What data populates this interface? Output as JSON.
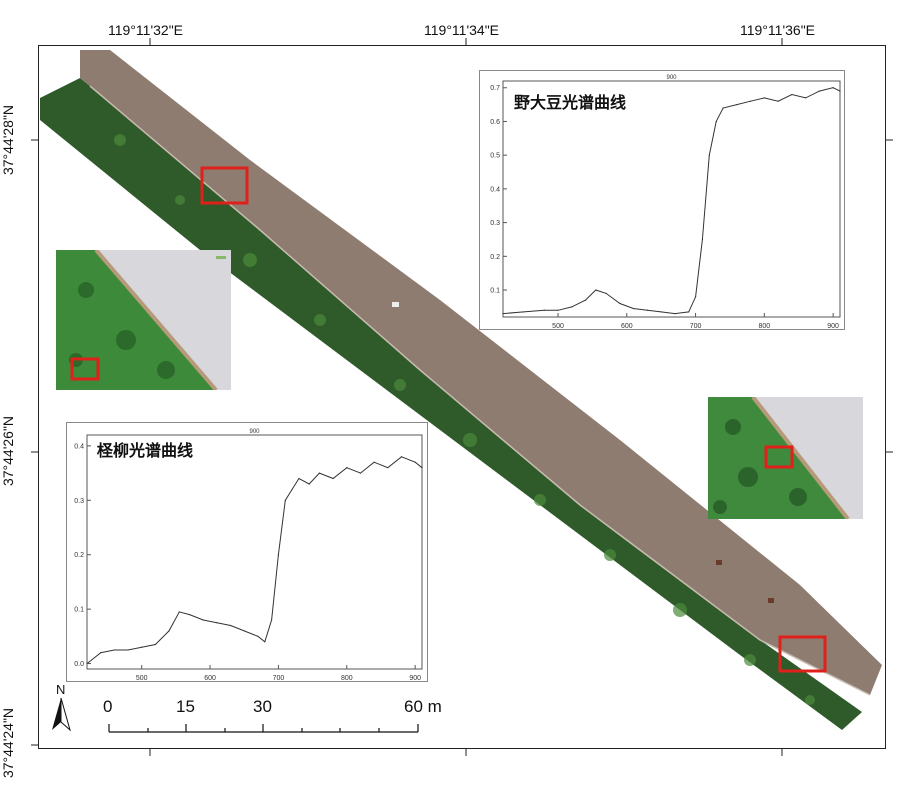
{
  "graticule": {
    "top_labels": [
      "119°11'32\"E",
      "119°11'34\"E",
      "119°11'36\"E"
    ],
    "left_labels": [
      "37°44'28\"N",
      "37°44'26\"N",
      "37°44'24\"N"
    ]
  },
  "north_arrow": {
    "label": "N"
  },
  "scale_bar": {
    "labels": [
      "0",
      "15",
      "30",
      "60 m"
    ]
  },
  "charts": {
    "soybean": {
      "title": "野大豆光谱曲线",
      "top_mark": "900",
      "x_ticks": [
        "500",
        "600",
        "700",
        "800",
        "900"
      ],
      "y_ticks": [
        "0.1",
        "0.2",
        "0.3",
        "0.4",
        "0.5",
        "0.6",
        "0.7"
      ]
    },
    "tamarisk": {
      "title": "柽柳光谱曲线",
      "top_mark": "900",
      "x_ticks": [
        "500",
        "600",
        "700",
        "800",
        "900"
      ],
      "y_ticks": [
        "0.0",
        "0.1",
        "0.2",
        "0.3",
        "0.4"
      ]
    }
  },
  "chart_data": [
    {
      "type": "line",
      "title": "野大豆光谱曲线",
      "x": [
        420,
        450,
        480,
        500,
        520,
        540,
        555,
        570,
        590,
        610,
        630,
        650,
        670,
        690,
        700,
        710,
        720,
        730,
        740,
        760,
        780,
        800,
        820,
        840,
        860,
        880,
        900,
        910
      ],
      "values": [
        0.03,
        0.035,
        0.04,
        0.04,
        0.05,
        0.07,
        0.1,
        0.09,
        0.06,
        0.045,
        0.04,
        0.035,
        0.03,
        0.035,
        0.08,
        0.25,
        0.5,
        0.6,
        0.64,
        0.65,
        0.66,
        0.67,
        0.66,
        0.68,
        0.67,
        0.69,
        0.7,
        0.69
      ],
      "xlim": [
        420,
        910
      ],
      "ylim": [
        0.02,
        0.72
      ]
    },
    {
      "type": "line",
      "title": "柽柳光谱曲线",
      "x": [
        420,
        440,
        460,
        480,
        500,
        520,
        540,
        555,
        570,
        590,
        610,
        630,
        650,
        670,
        680,
        690,
        700,
        710,
        720,
        730,
        745,
        760,
        780,
        800,
        820,
        840,
        860,
        880,
        900,
        910
      ],
      "values": [
        0.0,
        0.02,
        0.025,
        0.025,
        0.03,
        0.035,
        0.06,
        0.095,
        0.09,
        0.08,
        0.075,
        0.07,
        0.06,
        0.05,
        0.04,
        0.08,
        0.2,
        0.3,
        0.32,
        0.34,
        0.33,
        0.35,
        0.34,
        0.36,
        0.35,
        0.37,
        0.36,
        0.38,
        0.37,
        0.36
      ],
      "xlim": [
        420,
        910
      ],
      "ylim": [
        -0.01,
        0.42
      ]
    }
  ],
  "colors": {
    "highlight": "#e0201b",
    "road": "#8f7c70",
    "vegetation": "#2f5a2a"
  }
}
